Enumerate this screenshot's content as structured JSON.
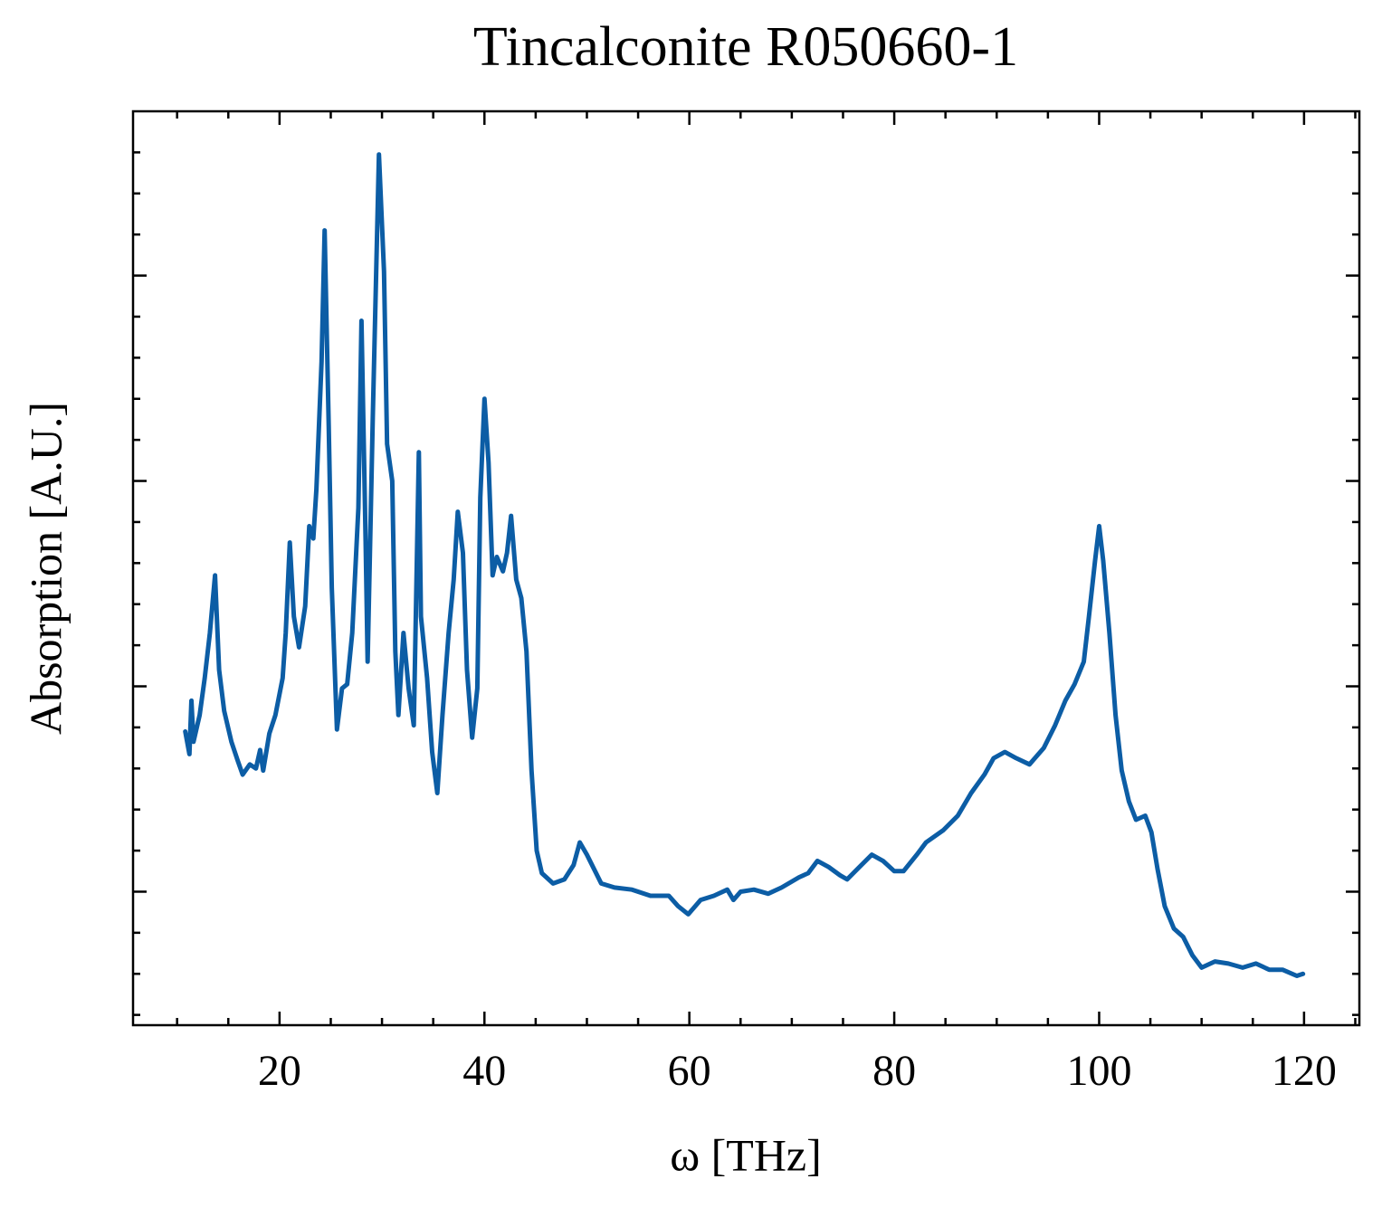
{
  "chart_data": {
    "type": "line",
    "title": "Tincalconite R050660-1",
    "xlabel": "ω [THz]",
    "ylabel": "Absorption [A.U.]",
    "color": "#0c5da5",
    "xlim": [
      5.7,
      125.4
    ],
    "ylim": [
      -0.65,
      3.8
    ],
    "xticks": [
      20,
      40,
      60,
      80,
      100,
      120
    ],
    "yticks": [
      0,
      1,
      2,
      3
    ],
    "ytick_labels": false,
    "xminor_ticks": [
      10,
      15,
      25,
      30,
      35,
      45,
      50,
      55,
      65,
      70,
      75,
      85,
      90,
      95,
      105,
      110,
      115,
      125
    ],
    "yminor_ticks": [
      -0.6,
      -0.4,
      -0.2,
      0.2,
      0.4,
      0.6,
      0.8,
      1.2,
      1.4,
      1.6,
      1.8,
      2.2,
      2.4,
      2.6,
      2.8,
      3.2,
      3.4,
      3.6
    ],
    "ticks_inside": true,
    "mirror_ticks": true,
    "x": [
      10.8,
      11.2,
      11.4,
      11.6,
      12.2,
      12.7,
      13.2,
      13.7,
      14.1,
      14.6,
      15.3,
      15.9,
      16.4,
      17.1,
      17.7,
      18.1,
      18.4,
      19.0,
      19.6,
      20.3,
      20.6,
      21.0,
      21.4,
      21.9,
      22.5,
      22.9,
      23.3,
      23.6,
      24.1,
      24.4,
      24.8,
      25.1,
      25.6,
      26.1,
      26.6,
      27.1,
      27.7,
      28.0,
      28.4,
      28.6,
      29.1,
      29.7,
      30.2,
      30.5,
      31.0,
      31.3,
      31.6,
      32.1,
      32.6,
      33.1,
      33.6,
      33.8,
      34.4,
      34.9,
      35.4,
      35.9,
      36.5,
      37.0,
      37.4,
      37.9,
      38.3,
      38.8,
      39.3,
      39.6,
      40.0,
      40.4,
      40.8,
      41.2,
      41.8,
      42.2,
      42.6,
      43.1,
      43.6,
      44.1,
      44.6,
      45.1,
      45.6,
      46.7,
      47.8,
      48.7,
      49.3,
      50.0,
      50.7,
      51.4,
      52.7,
      54.4,
      56.2,
      58.0,
      58.9,
      59.9,
      61.1,
      62.4,
      63.7,
      64.3,
      65.0,
      66.3,
      67.7,
      69.0,
      70.7,
      71.6,
      72.5,
      73.6,
      74.7,
      75.4,
      76.4,
      77.8,
      78.9,
      80.0,
      80.9,
      82.2,
      83.1,
      84.8,
      86.2,
      87.5,
      88.8,
      89.7,
      90.8,
      91.9,
      93.2,
      94.6,
      95.7,
      96.7,
      97.6,
      98.5,
      99.0,
      99.6,
      100.0,
      100.4,
      101.0,
      101.6,
      102.2,
      102.9,
      103.6,
      104.5,
      105.1,
      105.7,
      106.4,
      107.3,
      108.2,
      109.1,
      110.0,
      111.3,
      112.6,
      114.0,
      115.3,
      116.6,
      117.9,
      119.3,
      119.9
    ],
    "values": [
      0.78,
      0.67,
      0.93,
      0.73,
      0.86,
      1.04,
      1.26,
      1.54,
      1.08,
      0.88,
      0.73,
      0.64,
      0.57,
      0.62,
      0.6,
      0.69,
      0.59,
      0.77,
      0.86,
      1.04,
      1.26,
      1.7,
      1.34,
      1.19,
      1.39,
      1.78,
      1.72,
      1.96,
      2.58,
      3.22,
      2.27,
      1.48,
      0.79,
      0.99,
      1.01,
      1.26,
      1.87,
      2.78,
      1.7,
      1.12,
      2.31,
      3.59,
      3.02,
      2.18,
      2.0,
      1.17,
      0.86,
      1.26,
      0.99,
      0.81,
      2.14,
      1.34,
      1.04,
      0.68,
      0.48,
      0.86,
      1.26,
      1.52,
      1.85,
      1.65,
      1.08,
      0.75,
      0.99,
      1.92,
      2.4,
      2.09,
      1.54,
      1.63,
      1.56,
      1.65,
      1.83,
      1.52,
      1.43,
      1.17,
      0.59,
      0.2,
      0.09,
      0.04,
      0.06,
      0.13,
      0.24,
      0.18,
      0.11,
      0.04,
      0.02,
      0.01,
      -0.02,
      -0.02,
      -0.07,
      -0.11,
      -0.04,
      -0.02,
      0.01,
      -0.04,
      0.0,
      0.01,
      -0.01,
      0.02,
      0.07,
      0.09,
      0.15,
      0.12,
      0.08,
      0.06,
      0.11,
      0.18,
      0.15,
      0.1,
      0.1,
      0.18,
      0.24,
      0.3,
      0.37,
      0.48,
      0.57,
      0.65,
      0.68,
      0.65,
      0.62,
      0.7,
      0.81,
      0.93,
      1.01,
      1.12,
      1.34,
      1.61,
      1.78,
      1.61,
      1.26,
      0.86,
      0.59,
      0.44,
      0.35,
      0.37,
      0.29,
      0.11,
      -0.07,
      -0.18,
      -0.22,
      -0.31,
      -0.37,
      -0.34,
      -0.35,
      -0.37,
      -0.35,
      -0.38,
      -0.38,
      -0.41,
      -0.4
    ]
  }
}
